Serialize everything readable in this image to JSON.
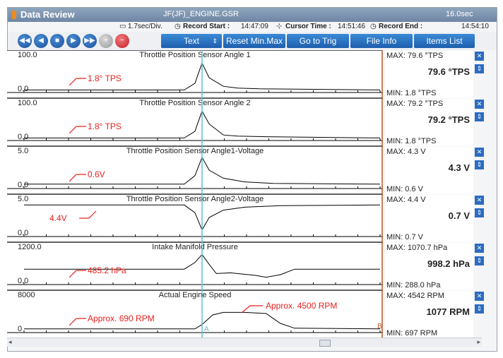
{
  "window": {
    "title": "Data Review",
    "file": "JF(JF)_ENGINE.GSR",
    "duration": "16.0sec"
  },
  "info": {
    "div": "1.7sec/Div.",
    "record_start_label": "Record Start :",
    "record_start": "14:47:09",
    "cursor_time_label": "Cursor Time :",
    "cursor_time": "14:51:46",
    "record_end_label": "Record End :",
    "record_end": "14:54:10"
  },
  "toolbar": {
    "text_label": "Text",
    "reset_label": "Reset Min.Max",
    "trig_label": "Go to Trig",
    "fileinfo_label": "File Info",
    "items_label": "Items List"
  },
  "colors": {
    "annotation": "#e8201e",
    "cursor": "#66bfd2",
    "marker_b": "#b0582a",
    "trace": "#000000"
  },
  "cursor": {
    "time": 0.5,
    "marker_a": "A",
    "marker_b": "B"
  },
  "chart_data": {
    "type": "line",
    "x_divisions": 16,
    "panels": [
      {
        "title": "Throttle Position Sensor Angle 1",
        "ymax_label": "100.0",
        "ymin_label": "0.0",
        "ymin": 0,
        "ymax": 100,
        "max_text": "MAX: 79.6 °TPS",
        "cur_text": "79.6 °TPS",
        "min_text": "MIN: 1.8 °TPS",
        "annotation": "1.8° TPS",
        "annotation_dir": "down",
        "series": [
          [
            0,
            0.07
          ],
          [
            0.45,
            0.07
          ],
          [
            0.48,
            0.25
          ],
          [
            0.5,
            0.8
          ],
          [
            0.52,
            0.4
          ],
          [
            0.56,
            0.17
          ],
          [
            0.6,
            0.12
          ],
          [
            0.66,
            0.1
          ],
          [
            1,
            0.07
          ]
        ]
      },
      {
        "title": "Throttle Position Sensor Angle 2",
        "ymax_label": "100.0",
        "ymin_label": "0.0",
        "ymin": 0,
        "ymax": 100,
        "max_text": "MAX: 79.2 °TPS",
        "cur_text": "79.2 °TPS",
        "min_text": "MIN: 1.8 °TPS",
        "annotation": "1.8° TPS",
        "annotation_dir": "down",
        "series": [
          [
            0,
            0.07
          ],
          [
            0.45,
            0.07
          ],
          [
            0.48,
            0.25
          ],
          [
            0.5,
            0.8
          ],
          [
            0.52,
            0.45
          ],
          [
            0.56,
            0.15
          ],
          [
            0.6,
            0.12
          ],
          [
            0.7,
            0.1
          ],
          [
            1,
            0.07
          ]
        ]
      },
      {
        "title": "Throttle Position Sensor Angle1-Voltage",
        "ymax_label": "5.0",
        "ymin_label": "0.0",
        "ymin": 0,
        "ymax": 5,
        "max_text": "MAX:  4.3 V",
        "cur_text": "4.3 V",
        "min_text": "MIN:  0.6 V",
        "annotation": "0.6V",
        "annotation_dir": "down",
        "series": [
          [
            0,
            0.12
          ],
          [
            0.45,
            0.12
          ],
          [
            0.48,
            0.35
          ],
          [
            0.5,
            0.85
          ],
          [
            0.52,
            0.5
          ],
          [
            0.56,
            0.28
          ],
          [
            0.62,
            0.18
          ],
          [
            0.7,
            0.14
          ],
          [
            1,
            0.12
          ]
        ]
      },
      {
        "title": "Throttle Position Sensor Angle2-Voltage",
        "ymax_label": "5.0",
        "ymin_label": "0.0",
        "ymin": 0,
        "ymax": 5,
        "max_text": "MAX:   4.4 V",
        "cur_text": "0.7 V",
        "min_text": "MIN:  0.7 V",
        "annotation": "4.4V",
        "annotation_dir": "up",
        "series": [
          [
            0,
            0.86
          ],
          [
            0.45,
            0.86
          ],
          [
            0.48,
            0.65
          ],
          [
            0.5,
            0.18
          ],
          [
            0.52,
            0.52
          ],
          [
            0.56,
            0.72
          ],
          [
            0.62,
            0.8
          ],
          [
            0.72,
            0.84
          ],
          [
            1,
            0.86
          ]
        ]
      },
      {
        "title": "Intake Manifold Pressure",
        "ymax_label": "1200.0",
        "ymin_label": "0.0",
        "ymin": 0,
        "ymax": 1200,
        "max_text": "MAX: 1070.7 hPa",
        "cur_text": "998.2 hPa",
        "min_text": "MIN: 288.0 hPa",
        "annotation": "485.2 hPa",
        "annotation_dir": "down",
        "series": [
          [
            0,
            0.42
          ],
          [
            0.45,
            0.42
          ],
          [
            0.48,
            0.6
          ],
          [
            0.5,
            0.82
          ],
          [
            0.52,
            0.55
          ],
          [
            0.54,
            0.3
          ],
          [
            0.58,
            0.32
          ],
          [
            0.65,
            0.25
          ],
          [
            0.68,
            0.2
          ],
          [
            0.72,
            0.27
          ],
          [
            0.76,
            0.42
          ],
          [
            1,
            0.42
          ]
        ]
      },
      {
        "title": "Actual Engine Speed",
        "ymax_label": "8000",
        "ymin_label": "0",
        "ymin": 0,
        "ymax": 8000,
        "max_text": "MAX:  4542 RPM",
        "cur_text": "1077 RPM",
        "min_text": "MIN:  697 RPM",
        "annotation": "Approx. 690 RPM",
        "annotation2": "Approx. 4500 RPM",
        "annotation_dir": "down",
        "series": [
          [
            0,
            0.1
          ],
          [
            0.48,
            0.1
          ],
          [
            0.5,
            0.22
          ],
          [
            0.53,
            0.48
          ],
          [
            0.56,
            0.55
          ],
          [
            0.62,
            0.55
          ],
          [
            0.68,
            0.52
          ],
          [
            0.72,
            0.25
          ],
          [
            0.76,
            0.12
          ],
          [
            1,
            0.1
          ]
        ]
      }
    ]
  }
}
